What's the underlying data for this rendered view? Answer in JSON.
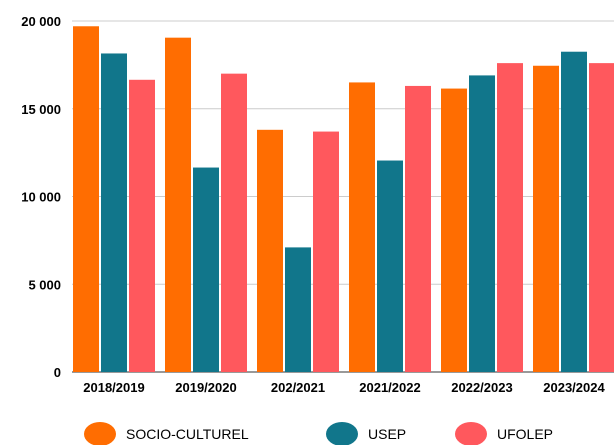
{
  "colors": {
    "SOCIO-CULTUREL": "#ff6d01",
    "USEP": "#11768b",
    "UFOLEP": "#ff585d",
    "grid": "#cccccc",
    "baseline": "#333333"
  },
  "chart_data": {
    "type": "bar",
    "title": "",
    "xlabel": "",
    "ylabel": "",
    "categories": [
      "2018/2019",
      "2019/2020",
      "202/2021",
      "2021/2022",
      "2022/2023",
      "2023/2024"
    ],
    "series": [
      {
        "name": "SOCIO-CULTUREL",
        "values": [
          19700,
          19050,
          13800,
          16500,
          16150,
          17450
        ]
      },
      {
        "name": "USEP",
        "values": [
          18150,
          11650,
          7100,
          12050,
          16900,
          18250
        ]
      },
      {
        "name": "UFOLEP",
        "values": [
          16650,
          17000,
          13700,
          16300,
          17600,
          17600
        ]
      }
    ],
    "yticks": [
      "0",
      "5 000",
      "10 000",
      "15 000",
      "20 000"
    ],
    "ylim": [
      0,
      20000
    ],
    "grid": true,
    "legend_position": "bottom"
  }
}
